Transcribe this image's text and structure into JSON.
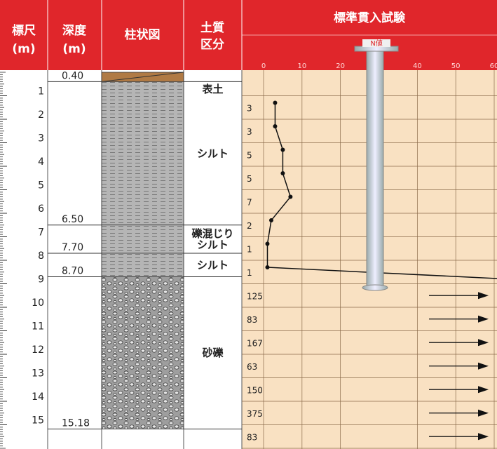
{
  "header": {
    "scale": "標尺",
    "scale_unit": "(m)",
    "depth": "深度",
    "depth_unit": "(m)",
    "column": "柱状図",
    "soil": "土質",
    "soil2": "区分",
    "spt": "標準貫入試験",
    "n_label": "N値"
  },
  "scale_labels": [
    1,
    2,
    3,
    4,
    5,
    6,
    7,
    8,
    9,
    10,
    11,
    12,
    13,
    14,
    15
  ],
  "layers": [
    {
      "bottom": {
        "value": 0.4,
        "label": "0.40"
      },
      "name": "表土",
      "pattern": "topsoil"
    },
    {
      "bottom": {
        "value": 6.5,
        "label": "6.50"
      },
      "name": "シルト",
      "pattern": "silt"
    },
    {
      "bottom": {
        "value": 7.7,
        "label": "7.70"
      },
      "name": "礫混じりシルト",
      "pattern": "silt"
    },
    {
      "bottom": {
        "value": 8.7,
        "label": "8.70"
      },
      "name": "シルト",
      "pattern": "silt"
    },
    {
      "bottom": {
        "value": 15.18,
        "label": "15.18"
      },
      "name": "砂礫",
      "pattern": "gravel"
    }
  ],
  "spt": {
    "xlim": [
      0,
      60
    ],
    "xticks": [
      0,
      10,
      20,
      40,
      50,
      60
    ],
    "n_values": [
      3,
      3,
      5,
      5,
      7,
      2,
      1,
      1,
      125,
      83,
      167,
      63,
      150,
      375,
      83
    ]
  }
}
